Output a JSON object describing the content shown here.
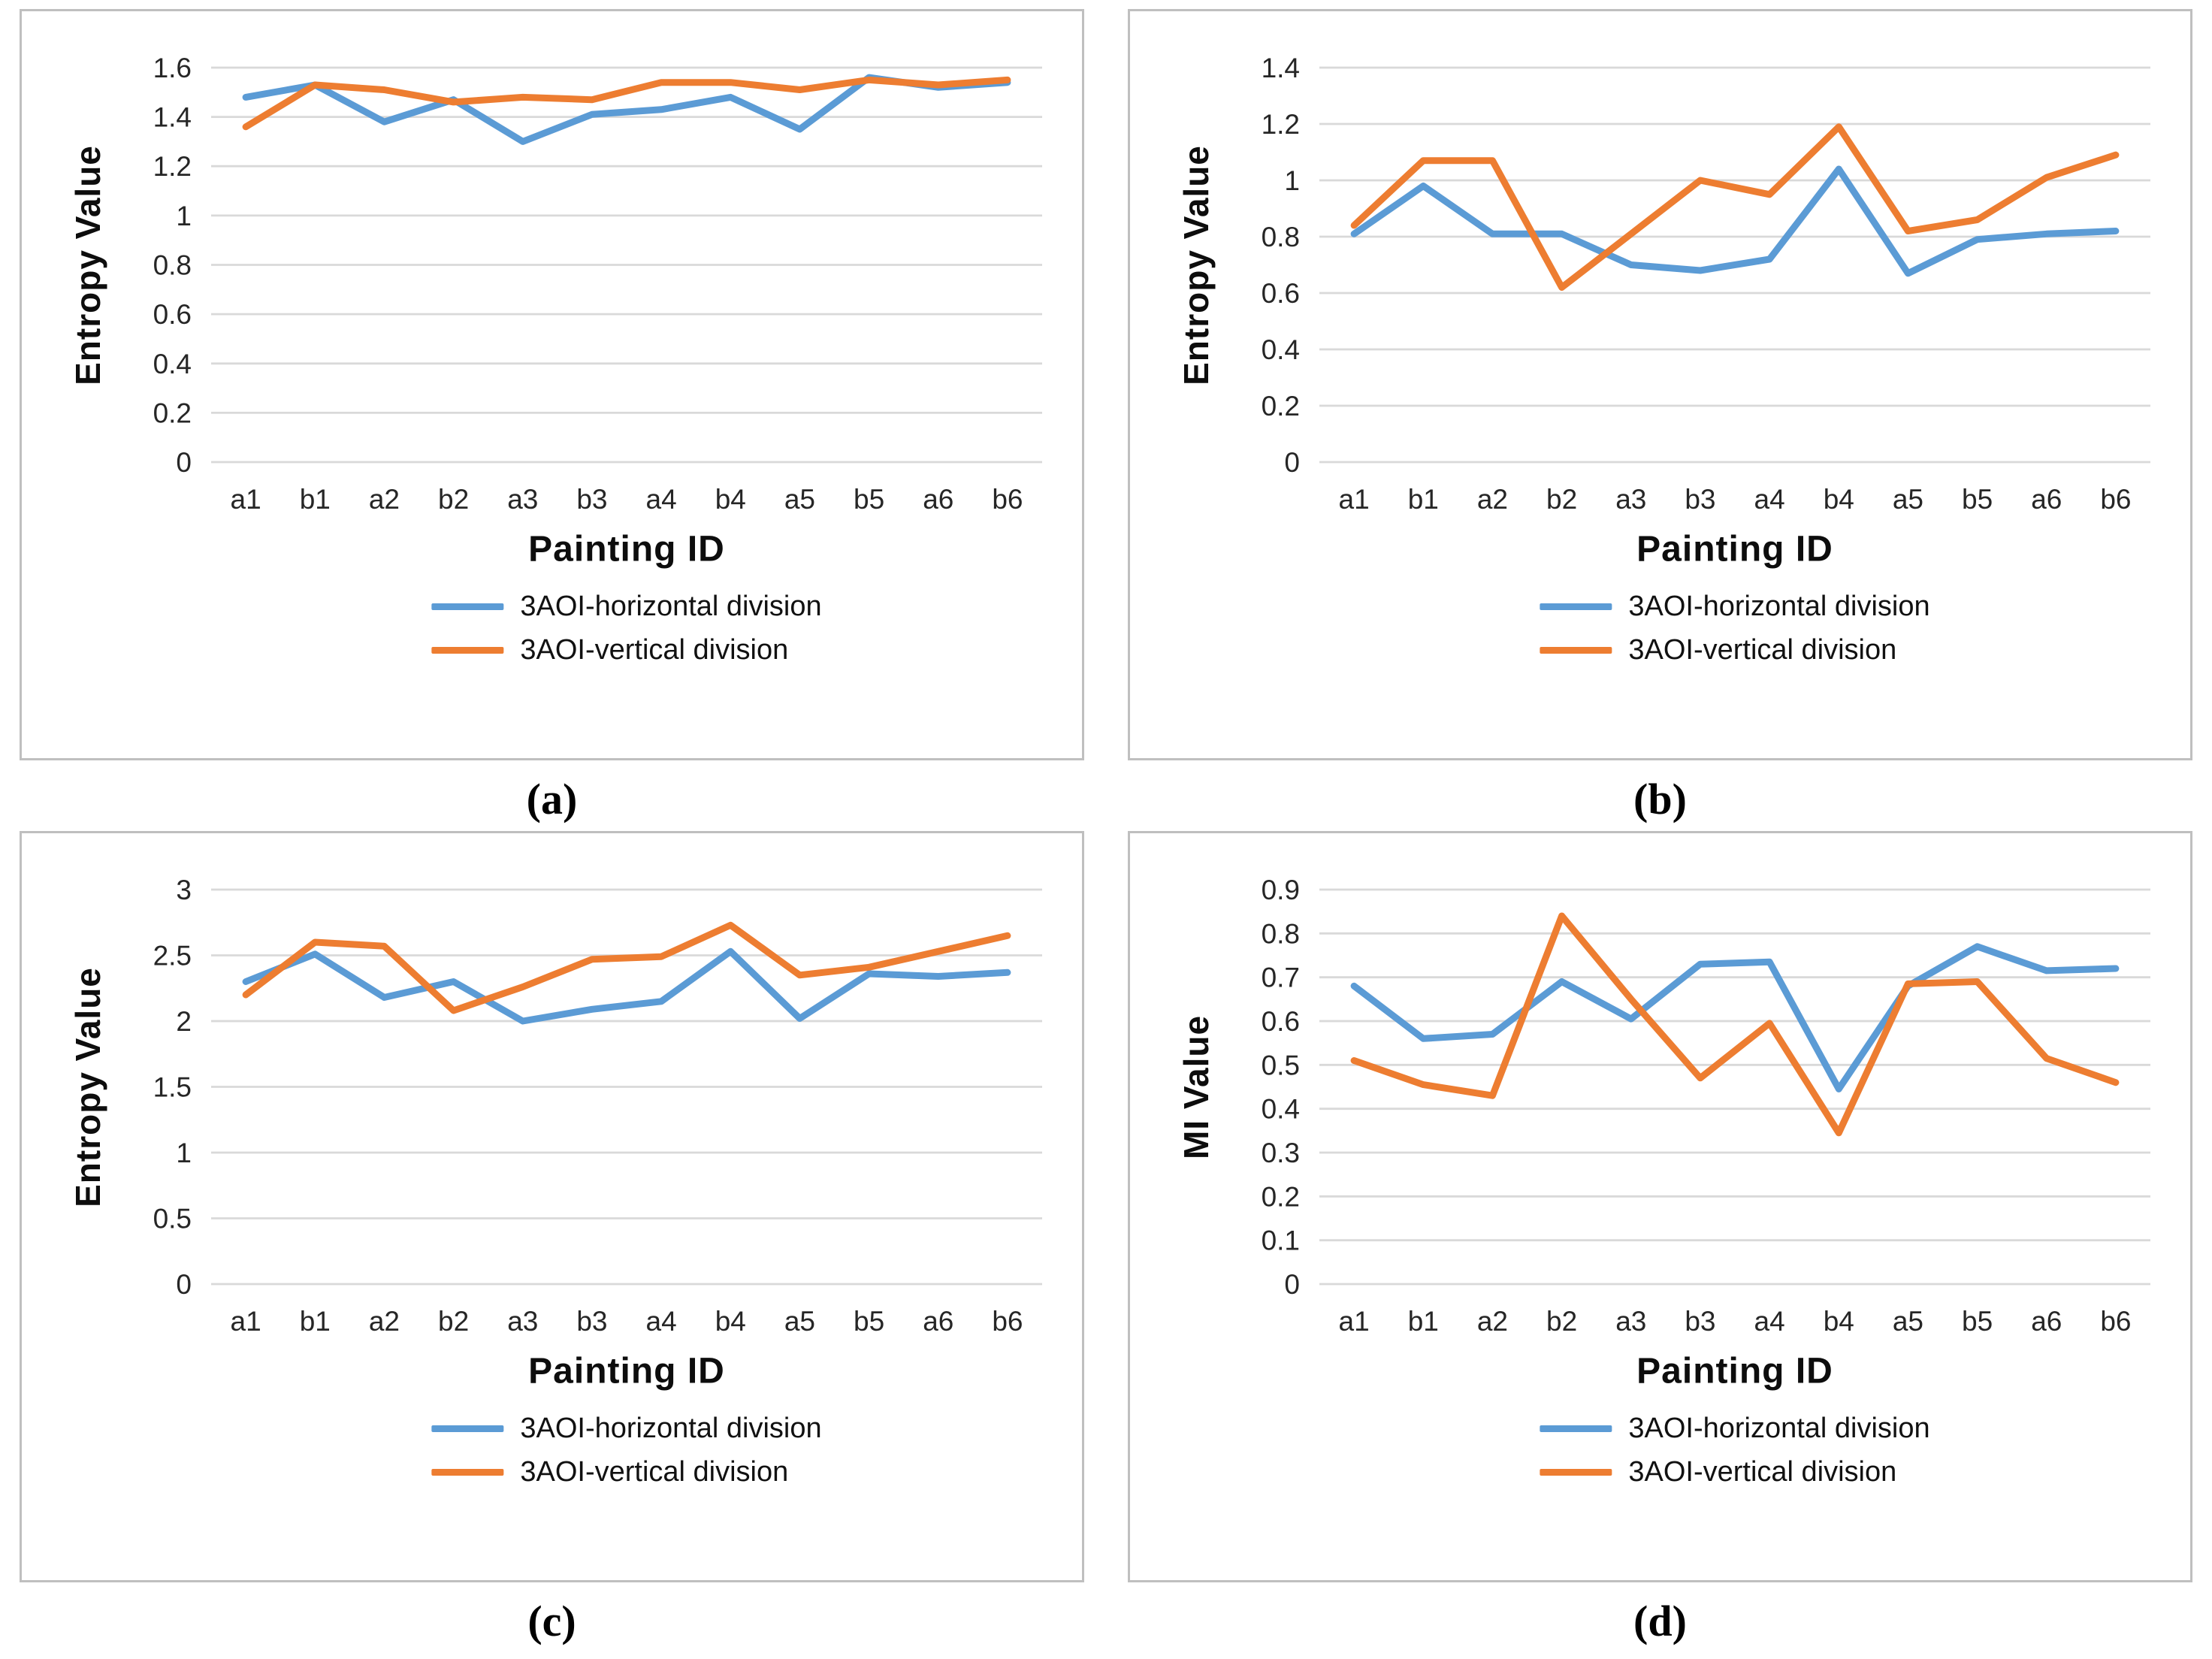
{
  "page": {
    "background": "#ffffff"
  },
  "colors": {
    "horizontal_series": "#5B9BD5",
    "vertical_series": "#ED7D31",
    "gridline": "#D9D9D9",
    "panel_border": "#BFBFBF",
    "tick_text": "#262626",
    "title_text": "#0d0d0d"
  },
  "chart_data": [
    {
      "type": "line",
      "panel": "a",
      "caption": "(a)",
      "xlabel": "Painting ID",
      "ylabel": "Entropy Value",
      "ylim": [
        0,
        1.6
      ],
      "ystep": 0.2,
      "grid": true,
      "legend_position": "bottom",
      "categories": [
        "a1",
        "b1",
        "a2",
        "b2",
        "a3",
        "b3",
        "a4",
        "b4",
        "a5",
        "b5",
        "a6",
        "b6"
      ],
      "series": [
        {
          "name": "3AOI-horizontal division",
          "color": "#5B9BD5",
          "values": [
            1.48,
            1.53,
            1.38,
            1.47,
            1.3,
            1.41,
            1.43,
            1.48,
            1.35,
            1.56,
            1.52,
            1.54
          ]
        },
        {
          "name": "3AOI-vertical division",
          "color": "#ED7D31",
          "values": [
            1.36,
            1.53,
            1.51,
            1.46,
            1.48,
            1.47,
            1.54,
            1.54,
            1.51,
            1.55,
            1.53,
            1.55
          ]
        }
      ]
    },
    {
      "type": "line",
      "panel": "b",
      "caption": "(b)",
      "xlabel": "Painting ID",
      "ylabel": "Entropy Value",
      "ylim": [
        0,
        1.4
      ],
      "ystep": 0.2,
      "grid": true,
      "legend_position": "bottom",
      "categories": [
        "a1",
        "b1",
        "a2",
        "b2",
        "a3",
        "b3",
        "a4",
        "b4",
        "a5",
        "b5",
        "a6",
        "b6"
      ],
      "series": [
        {
          "name": "3AOI-horizontal division",
          "color": "#5B9BD5",
          "values": [
            0.81,
            0.98,
            0.81,
            0.81,
            0.7,
            0.68,
            0.72,
            1.04,
            0.67,
            0.79,
            0.81,
            0.82
          ]
        },
        {
          "name": "3AOI-vertical division",
          "color": "#ED7D31",
          "values": [
            0.84,
            1.07,
            1.07,
            0.62,
            0.81,
            1.0,
            0.95,
            1.19,
            0.82,
            0.86,
            1.01,
            1.09
          ]
        }
      ]
    },
    {
      "type": "line",
      "panel": "c",
      "caption": "(c)",
      "xlabel": "Painting ID",
      "ylabel": "Entropy Value",
      "ylim": [
        0,
        3
      ],
      "ystep": 0.5,
      "grid": true,
      "legend_position": "bottom",
      "categories": [
        "a1",
        "b1",
        "a2",
        "b2",
        "a3",
        "b3",
        "a4",
        "b4",
        "a5",
        "b5",
        "a6",
        "b6"
      ],
      "series": [
        {
          "name": "3AOI-horizontal division",
          "color": "#5B9BD5",
          "values": [
            2.3,
            2.51,
            2.18,
            2.3,
            2.0,
            2.09,
            2.15,
            2.53,
            2.02,
            2.36,
            2.34,
            2.37
          ]
        },
        {
          "name": "3AOI-vertical division",
          "color": "#ED7D31",
          "values": [
            2.2,
            2.6,
            2.57,
            2.08,
            2.26,
            2.47,
            2.49,
            2.73,
            2.35,
            2.41,
            2.53,
            2.65
          ]
        }
      ]
    },
    {
      "type": "line",
      "panel": "d",
      "caption": "(d)",
      "xlabel": "Painting ID",
      "ylabel": "MI Value",
      "ylim": [
        0,
        0.9
      ],
      "ystep": 0.1,
      "grid": true,
      "legend_position": "bottom",
      "categories": [
        "a1",
        "b1",
        "a2",
        "b2",
        "a3",
        "b3",
        "a4",
        "b4",
        "a5",
        "b5",
        "a6",
        "b6"
      ],
      "series": [
        {
          "name": "3AOI-horizontal division",
          "color": "#5B9BD5",
          "values": [
            0.68,
            0.56,
            0.57,
            0.69,
            0.605,
            0.73,
            0.735,
            0.445,
            0.68,
            0.77,
            0.715,
            0.72
          ]
        },
        {
          "name": "3AOI-vertical division",
          "color": "#ED7D31",
          "values": [
            0.51,
            0.455,
            0.43,
            0.84,
            0.65,
            0.47,
            0.595,
            0.345,
            0.685,
            0.69,
            0.515,
            0.46
          ]
        }
      ]
    }
  ]
}
